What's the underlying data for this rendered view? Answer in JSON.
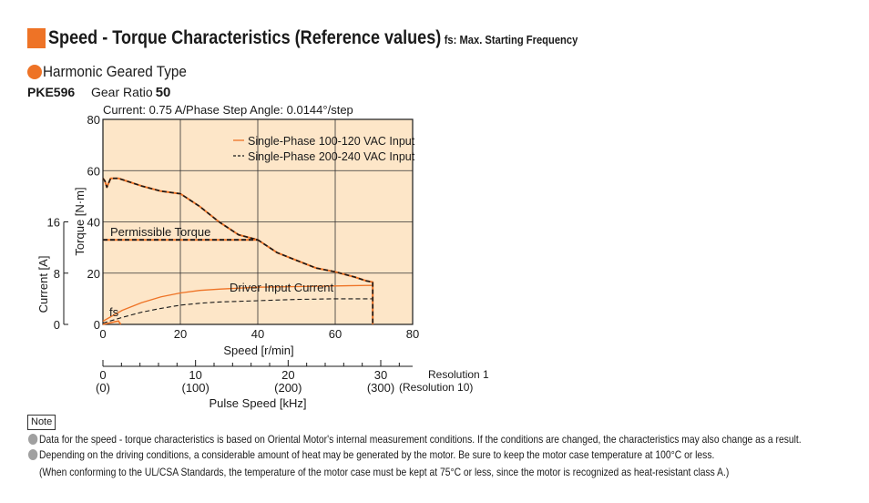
{
  "header": {
    "title": "Speed - Torque Characteristics (Reference values)",
    "title_note": "fs: Max. Starting Frequency",
    "subtitle": "Harmonic Geared Type",
    "model": "PKE596",
    "gear_ratio_label": "Gear Ratio",
    "gear_ratio_value": "50"
  },
  "colors": {
    "accent": "#ee7326",
    "plot_background": "#fde6c8",
    "bullet_gray": "#a0a0a0"
  },
  "chart_data": {
    "type": "line",
    "title": "",
    "condition_text": "Current: 0.75 A/Phase   Step Angle: 0.0144°/step",
    "xlabel": "Speed [r/min]",
    "ylabel": "Torque [N·m]",
    "y2label": "Current [A]",
    "xlim": [
      0,
      80
    ],
    "ylim": [
      0,
      80
    ],
    "x_ticks": [
      0,
      20,
      40,
      60,
      80
    ],
    "y_ticks": [
      0,
      20,
      40,
      60,
      80
    ],
    "y2lim": [
      0,
      32
    ],
    "y2_ticks": [
      0,
      8,
      16
    ],
    "grid": true,
    "legend_position": "top-right",
    "series": [
      {
        "name": "Single-Phase 100-120 VAC Input",
        "style": "solid",
        "color": "#ee7326",
        "x": [
          0,
          0.5,
          1,
          2,
          4,
          6,
          10,
          15,
          20,
          25,
          30,
          35,
          40,
          45,
          50,
          55,
          60,
          65,
          68,
          69.7,
          69.7
        ],
        "y": [
          57,
          56,
          53.5,
          57,
          57,
          56,
          54,
          52,
          51,
          46,
          40,
          35,
          33,
          28,
          25,
          22,
          20.5,
          18.5,
          17,
          16.5,
          0
        ]
      },
      {
        "name": "Single-Phase 200-240 VAC Input",
        "style": "dashed",
        "color": "#1a1a1a",
        "x": [
          0,
          0.5,
          1,
          2,
          4,
          6,
          10,
          15,
          20,
          25,
          30,
          35,
          40,
          45,
          50,
          55,
          60,
          65,
          68,
          69.7,
          69.7
        ],
        "y": [
          57,
          56,
          53.5,
          57,
          57,
          56,
          54,
          52,
          51,
          46,
          40,
          35,
          33,
          28,
          25,
          22,
          20.5,
          18.5,
          17,
          16.5,
          0
        ]
      }
    ],
    "current_series": [
      {
        "name": "Driver Input Current 100-120 VAC",
        "style": "solid",
        "color": "#ee7326",
        "x": [
          0,
          5,
          10,
          15,
          20,
          25,
          30,
          40,
          50,
          60,
          69.7,
          69.7
        ],
        "y": [
          0.5,
          2.2,
          3.4,
          4.3,
          4.9,
          5.3,
          5.5,
          5.8,
          5.9,
          6,
          6.1,
          0
        ]
      },
      {
        "name": "Driver Input Current 200-240 VAC",
        "style": "dashed",
        "color": "#1a1a1a",
        "x": [
          0,
          5,
          10,
          15,
          20,
          25,
          30,
          40,
          50,
          60,
          69.7
        ],
        "y": [
          0.2,
          1.1,
          1.9,
          2.5,
          3,
          3.3,
          3.5,
          3.7,
          3.9,
          4,
          4
        ]
      }
    ],
    "permissible_torque": {
      "label": "Permissible Torque",
      "value": 33,
      "x_end": 40
    },
    "fs": {
      "label": "fs",
      "x": [
        0,
        4,
        4.6
      ],
      "y": [
        0,
        1.3,
        0
      ]
    },
    "annotations": {
      "permissible": "Permissible Torque",
      "driver_current": "Driver Input Current",
      "fs": "fs"
    },
    "pulse_axis": {
      "label": "Pulse Speed [kHz]",
      "res1_label": "Resolution 1",
      "res10_label": "(Resolution 10)",
      "ticks": [
        {
          "value": 0,
          "label": "0",
          "label10": "(0)"
        },
        {
          "value": 10,
          "label": "10",
          "label10": "(100)"
        },
        {
          "value": 20,
          "label": "20",
          "label10": "(200)"
        },
        {
          "value": 30,
          "label": "30",
          "label10": "(300)"
        }
      ]
    }
  },
  "notes": {
    "label": "Note",
    "items": [
      "Data for the speed - torque characteristics is based on Oriental Motor's internal measurement conditions. If the conditions are changed, the characteristics may also change as a result.",
      "Depending on the driving conditions, a considerable amount of heat may be generated by the motor. Be sure to keep the motor case temperature at 100°C or less."
    ],
    "sub_item": "(When conforming to the UL/CSA Standards, the temperature of the motor case must be kept at 75°C or less, since the motor is recognized as heat-resistant class A.)"
  }
}
